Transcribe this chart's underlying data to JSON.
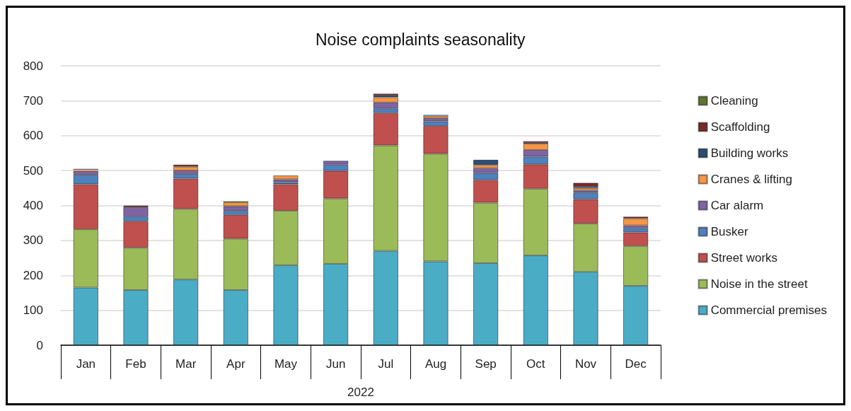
{
  "chart_data": {
    "type": "bar",
    "title": "Noise complaints seasonality",
    "xlabel": "2022",
    "categories": [
      "Jan",
      "Feb",
      "Mar",
      "Apr",
      "May",
      "Jun",
      "Jul",
      "Aug",
      "Sep",
      "Oct",
      "Nov",
      "Dec"
    ],
    "stacked": true,
    "ylim": [
      0,
      800
    ],
    "yticks": [
      0,
      100,
      200,
      300,
      400,
      500,
      600,
      700,
      800
    ],
    "grid": "y",
    "legend": "right",
    "series": [
      {
        "name": "Commercial premises",
        "color": "#4bacc6",
        "values": [
          165,
          158,
          188,
          158,
          229,
          233,
          270,
          240,
          235,
          257,
          210,
          170
        ]
      },
      {
        "name": "Noise in the street",
        "color": "#9bbb59",
        "values": [
          167,
          121,
          202,
          147,
          156,
          187,
          302,
          308,
          173,
          191,
          138,
          114
        ]
      },
      {
        "name": "Street works",
        "color": "#c0504d",
        "values": [
          129,
          76,
          87,
          68,
          76,
          79,
          93,
          80,
          65,
          70,
          70,
          39
        ]
      },
      {
        "name": "Busker",
        "color": "#4f81bd",
        "values": [
          27,
          14,
          13,
          12,
          6,
          18,
          13,
          13,
          20,
          22,
          19,
          12
        ]
      },
      {
        "name": "Car alarm",
        "color": "#8064a2",
        "values": [
          11,
          26,
          10,
          13,
          8,
          11,
          17,
          9,
          14,
          19,
          6,
          8
        ]
      },
      {
        "name": "Cranes & lifting",
        "color": "#f79646",
        "values": [
          4,
          0,
          11,
          11,
          11,
          0,
          15,
          7,
          9,
          18,
          7,
          20
        ]
      },
      {
        "name": "Building works",
        "color": "#2c4d75",
        "values": [
          2,
          0,
          0,
          0,
          0,
          0,
          7,
          2,
          15,
          3,
          3,
          0
        ]
      },
      {
        "name": "Scaffolding",
        "color": "#772c2a",
        "values": [
          0,
          5,
          6,
          0,
          0,
          0,
          3,
          0,
          0,
          4,
          12,
          5
        ]
      },
      {
        "name": "Cleaning",
        "color": "#5f7530",
        "values": [
          0,
          0,
          0,
          3,
          0,
          0,
          0,
          0,
          0,
          0,
          0,
          0
        ]
      }
    ]
  }
}
